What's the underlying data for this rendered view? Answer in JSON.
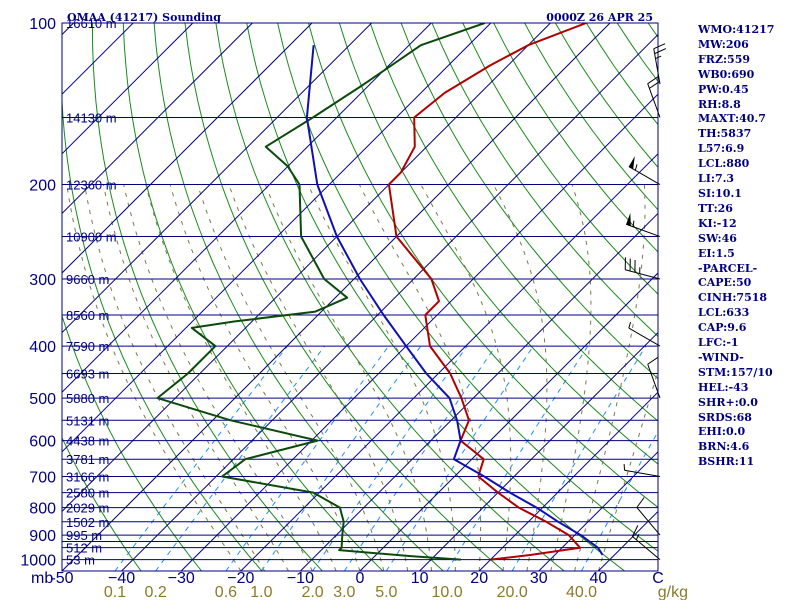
{
  "header": {
    "station": "OMAA (41217) Sounding",
    "valid_time": "0000Z 26 APR 25"
  },
  "colors": {
    "frame": "#000080",
    "isobar": "#000080",
    "isotherm": "#000080",
    "dry_adiabat": "#1b8a1b",
    "moist_adiabat": "#7a7a4a",
    "mixing_ratio": "#1e90ff",
    "temperature": "#b00000",
    "dewpoint": "#0b4a0b",
    "parcel": "#1010b0",
    "wind_barb": "#000000",
    "mixing_label": "#8a7a2a"
  },
  "indices": [
    "WMO:41217",
    "MW:206",
    "FRZ:559",
    "WB0:690",
    "PW:0.45",
    "RH:8.8",
    "MAXT:40.7",
    "TH:5837",
    "L57:6.9",
    "LCL:880",
    "LI:7.3",
    "SI:10.1",
    "TT:26",
    "KI:-12",
    "SW:46",
    "EI:1.5",
    "-PARCEL-",
    "CAPE:50",
    "CINH:7518",
    "LCL:633",
    "CAP:9.6",
    "LFC:-1",
    "-WIND-",
    "STM:157/10",
    "HEL:-43",
    "SHR+:0.0",
    "SRDS:68",
    "EHI:0.0",
    "BRN:4.6",
    "BSHR:11"
  ],
  "chart_data": {
    "type": "line",
    "title": "OMAA (41217) Sounding",
    "subtitle": "0000Z 26 APR 25",
    "xlabel": "",
    "ylabel": "",
    "xlim": [
      -50,
      50
    ],
    "ylim": [
      1050,
      100
    ],
    "y_scale": "log",
    "grid": true,
    "pressure_tick_labels": [
      "100",
      "200",
      "300",
      "400",
      "500",
      "600",
      "700",
      "800",
      "900",
      "1000"
    ],
    "pressure_ticks": [
      100,
      200,
      300,
      400,
      500,
      600,
      700,
      800,
      900,
      1000
    ],
    "temperature_tick_labels": [
      "-50",
      "−40",
      "−30",
      "−20",
      "−10",
      "0",
      "10",
      "20",
      "30",
      "40"
    ],
    "temperature_ticks": [
      -50,
      -40,
      -30,
      -20,
      -10,
      0,
      10,
      20,
      30,
      40
    ],
    "units_label": "mb",
    "axis_end_label": "C",
    "mixing_ratio_labels": [
      "0.1",
      "0.2",
      "0.6",
      "1.0",
      "2.0",
      "3.0",
      "5.0",
      "10.0",
      "20.0",
      "40.0"
    ],
    "mixing_ratio_unit": "g/kg",
    "isobar_pressures": [
      100,
      150,
      200,
      250,
      300,
      350,
      400,
      450,
      500,
      550,
      600,
      650,
      700,
      750,
      800,
      850,
      900,
      925,
      950,
      1000
    ],
    "height_labels": [
      {
        "p": 100,
        "text": "16610 m"
      },
      {
        "p": 150,
        "text": "14130 m"
      },
      {
        "p": 200,
        "text": "12360 m"
      },
      {
        "p": 250,
        "text": "10900 m"
      },
      {
        "p": 300,
        "text": "9660 m"
      },
      {
        "p": 350,
        "text": "8560 m"
      },
      {
        "p": 400,
        "text": "7590 m"
      },
      {
        "p": 450,
        "text": "6693 m"
      },
      {
        "p": 500,
        "text": "5880 m"
      },
      {
        "p": 550,
        "text": "5131 m"
      },
      {
        "p": 600,
        "text": "4438 m"
      },
      {
        "p": 650,
        "text": "3781 m"
      },
      {
        "p": 700,
        "text": "3166 m"
      },
      {
        "p": 750,
        "text": "2580 m"
      },
      {
        "p": 800,
        "text": "2029 m"
      },
      {
        "p": 850,
        "text": "1502 m"
      },
      {
        "p": 900,
        "text": "995 m"
      },
      {
        "p": 950,
        "text": "512 m"
      },
      {
        "p": 1000,
        "text": "53 m"
      }
    ],
    "series": [
      {
        "name": "temperature",
        "points": [
          [
            100,
            -54
          ],
          [
            110,
            -60
          ],
          [
            120,
            -63
          ],
          [
            135,
            -66
          ],
          [
            150,
            -67
          ],
          [
            170,
            -62
          ],
          [
            190,
            -60
          ],
          [
            200,
            -60
          ],
          [
            250,
            -50
          ],
          [
            300,
            -37
          ],
          [
            330,
            -32
          ],
          [
            350,
            -32
          ],
          [
            400,
            -26
          ],
          [
            450,
            -18
          ],
          [
            500,
            -12
          ],
          [
            550,
            -7
          ],
          [
            600,
            -5
          ],
          [
            650,
            2
          ],
          [
            700,
            4
          ],
          [
            750,
            10
          ],
          [
            800,
            16
          ],
          [
            850,
            23
          ],
          [
            900,
            29
          ],
          [
            950,
            33
          ],
          [
            980,
            26
          ],
          [
            1000,
            20
          ]
        ]
      },
      {
        "name": "dewpoint",
        "points": [
          [
            100,
            -71
          ],
          [
            110,
            -78
          ],
          [
            130,
            -81
          ],
          [
            150,
            -84
          ],
          [
            170,
            -87
          ],
          [
            185,
            -80
          ],
          [
            200,
            -75
          ],
          [
            250,
            -66
          ],
          [
            300,
            -55
          ],
          [
            325,
            -48
          ],
          [
            345,
            -51
          ],
          [
            360,
            -63
          ],
          [
            370,
            -69
          ],
          [
            400,
            -62
          ],
          [
            450,
            -62
          ],
          [
            500,
            -63
          ],
          [
            550,
            -47
          ],
          [
            600,
            -29
          ],
          [
            650,
            -38
          ],
          [
            700,
            -39
          ],
          [
            750,
            -21
          ],
          [
            800,
            -14
          ],
          [
            850,
            -11
          ],
          [
            900,
            -9
          ],
          [
            950,
            -7
          ],
          [
            960,
            -7
          ],
          [
            985,
            6
          ],
          [
            1000,
            15
          ]
        ]
      },
      {
        "name": "parcel",
        "points": [
          [
            110,
            -96
          ],
          [
            150,
            -85
          ],
          [
            200,
            -72
          ],
          [
            250,
            -60
          ],
          [
            300,
            -49
          ],
          [
            350,
            -39
          ],
          [
            400,
            -30
          ],
          [
            450,
            -22
          ],
          [
            500,
            -14
          ],
          [
            550,
            -9
          ],
          [
            600,
            -5
          ],
          [
            650,
            -3
          ],
          [
            700,
            5
          ],
          [
            750,
            12
          ],
          [
            800,
            19
          ],
          [
            850,
            25
          ],
          [
            900,
            31
          ],
          [
            950,
            36
          ],
          [
            980,
            38
          ]
        ]
      }
    ],
    "wind_barbs": [
      {
        "p": 130,
        "dir": 350,
        "kt": 25
      },
      {
        "p": 150,
        "dir": 340,
        "kt": 20
      },
      {
        "p": 200,
        "dir": 300,
        "kt": 55
      },
      {
        "p": 250,
        "dir": 290,
        "kt": 55
      },
      {
        "p": 300,
        "dir": 285,
        "kt": 35
      },
      {
        "p": 400,
        "dir": 300,
        "kt": 5
      },
      {
        "p": 500,
        "dir": 340,
        "kt": 10
      },
      {
        "p": 700,
        "dir": 280,
        "kt": 5
      },
      {
        "p": 900,
        "dir": 320,
        "kt": 10
      },
      {
        "p": 1000,
        "dir": 310,
        "kt": 15
      }
    ]
  }
}
